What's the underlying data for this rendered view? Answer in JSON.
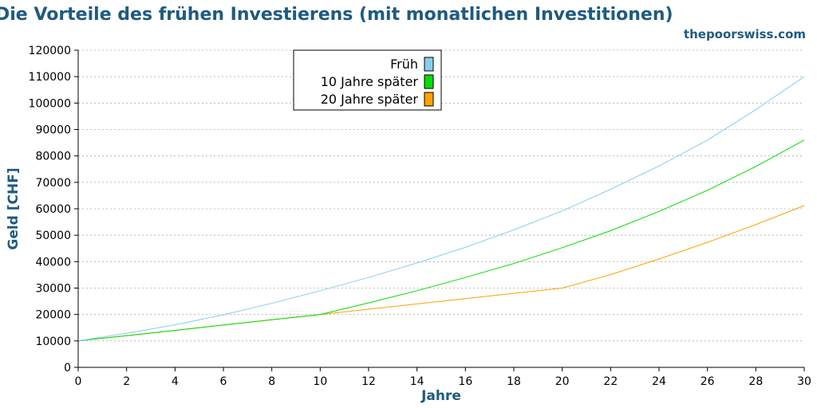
{
  "colors": {
    "title": "#1f5a80",
    "frueh": "#87ceeb",
    "zehn": "#00dd00",
    "zwanzig": "#ffa000",
    "grid": "#aaaaaa"
  },
  "chart_data": {
    "type": "line",
    "title": "Die Vorteile des frühen Investierens (mit monatlichen Investitionen)",
    "subtitle": "thepoorswiss.com",
    "xlabel": "Jahre",
    "ylabel": "Geld [CHF]",
    "xlim": [
      0,
      30
    ],
    "ylim": [
      0,
      120000
    ],
    "grid": "horizontal dotted",
    "legend_position": "top-center",
    "x_ticks": [
      0,
      2,
      4,
      6,
      8,
      10,
      12,
      14,
      16,
      18,
      20,
      22,
      24,
      26,
      28,
      30
    ],
    "y_ticks": [
      0,
      10000,
      20000,
      30000,
      40000,
      50000,
      60000,
      70000,
      80000,
      90000,
      100000,
      110000,
      120000
    ],
    "x": [
      0,
      2,
      4,
      6,
      8,
      10,
      12,
      14,
      16,
      18,
      20,
      22,
      24,
      26,
      28,
      30
    ],
    "series": [
      {
        "name": "Früh",
        "values": [
          10000,
          12900,
          16100,
          19900,
          24200,
          29000,
          34000,
          39500,
          45400,
          52000,
          59200,
          67400,
          76200,
          86000,
          97500,
          110000
        ]
      },
      {
        "name": "10 Jahre später",
        "values": [
          10000,
          12000,
          14000,
          16000,
          18000,
          20000,
          24400,
          29000,
          34000,
          39300,
          45300,
          51700,
          59000,
          67000,
          76000,
          86000
        ]
      },
      {
        "name": "20 Jahre später",
        "values": [
          10000,
          12000,
          14000,
          16000,
          18000,
          20000,
          22000,
          24000,
          26000,
          28000,
          30000,
          35100,
          41000,
          47300,
          54000,
          61200
        ]
      }
    ]
  }
}
